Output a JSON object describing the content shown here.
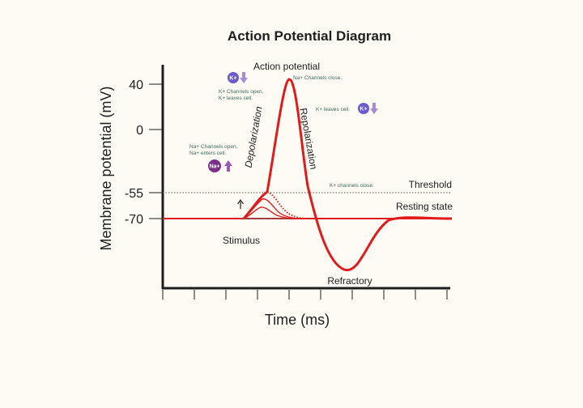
{
  "title": "Action Potential Diagram",
  "axes": {
    "xlabel": "Time (ms)",
    "ylabel": "Membrane potential (mV)",
    "yticks": [
      "40",
      "0",
      "-55",
      "-70"
    ]
  },
  "lines": {
    "threshold": "Threshold",
    "resting": "Resting state"
  },
  "labels": {
    "action_potential": "Action potential",
    "stimulus": "Stimulus",
    "refractory": "Refractory",
    "depolarization": "Depolarization",
    "repolarization": "Repolarization"
  },
  "notes": {
    "na_close": "Na+ Channels close.",
    "k_open_1": "K+ Channels open,",
    "k_open_2": "K+ leaves cell.",
    "k_leaves": "K+ leaves cell.",
    "na_open_1": "Na+ Channels open,",
    "na_open_2": "Na+ enters cell.",
    "k_close": "K+ channels close."
  },
  "ions": {
    "k": "K+",
    "na": "Na+"
  },
  "colors": {
    "curve": "#e01b1b",
    "k_ion": "#6a5acd",
    "na_ion": "#7b2f8a",
    "arrow": "#a78bd6",
    "note": "#3d6b5e"
  }
}
